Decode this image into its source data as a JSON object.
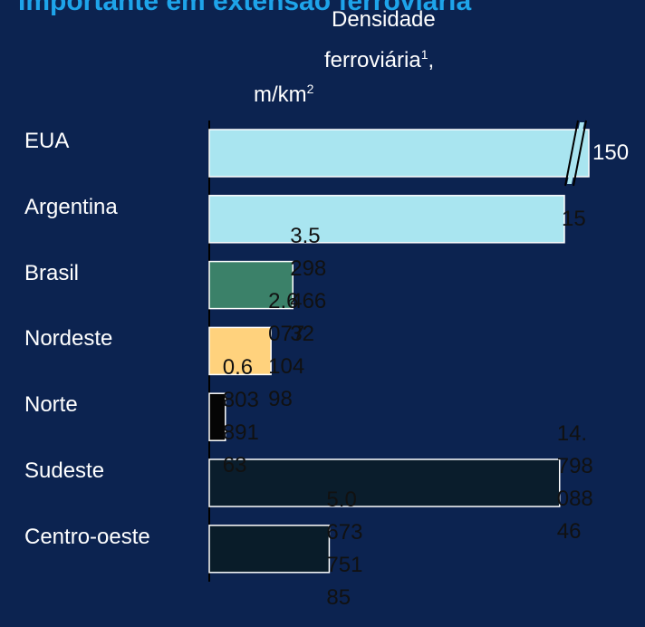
{
  "chart_data": {
    "type": "bar",
    "orientation": "horizontal",
    "title": "Importante em extensão ferroviária",
    "x_label": "Densidade",
    "x_label_line2": "ferroviária",
    "x_label_note": "1",
    "x_label_suffix": ",",
    "x_label_unit": "m/km",
    "x_label_unit_sup": "2",
    "categories": [
      "EUA",
      "Argentina",
      "Brasil",
      "Nordeste",
      "Norte",
      "Sudeste",
      "Centro-oeste"
    ],
    "values": [
      150,
      15,
      3.529846632,
      2.607710498,
      0.680389163,
      14.79808846,
      5.067375185
    ],
    "value_labels": [
      "150",
      "15",
      "3.529846632",
      "2.607710498",
      "0.680389163",
      "14.79808846",
      "5.067375185"
    ],
    "colors": [
      "#a9e5f0",
      "#a9e5f0",
      "#3b8169",
      "#ffd27d",
      "#050505",
      "#0a1d2c",
      "#091c29"
    ],
    "value_label_colors": [
      "#ffffff",
      "#111111",
      "#111111",
      "#111111",
      "#111111",
      "#111111",
      "#111111"
    ],
    "xlim": [
      0,
      15
    ],
    "axis_break": true
  }
}
